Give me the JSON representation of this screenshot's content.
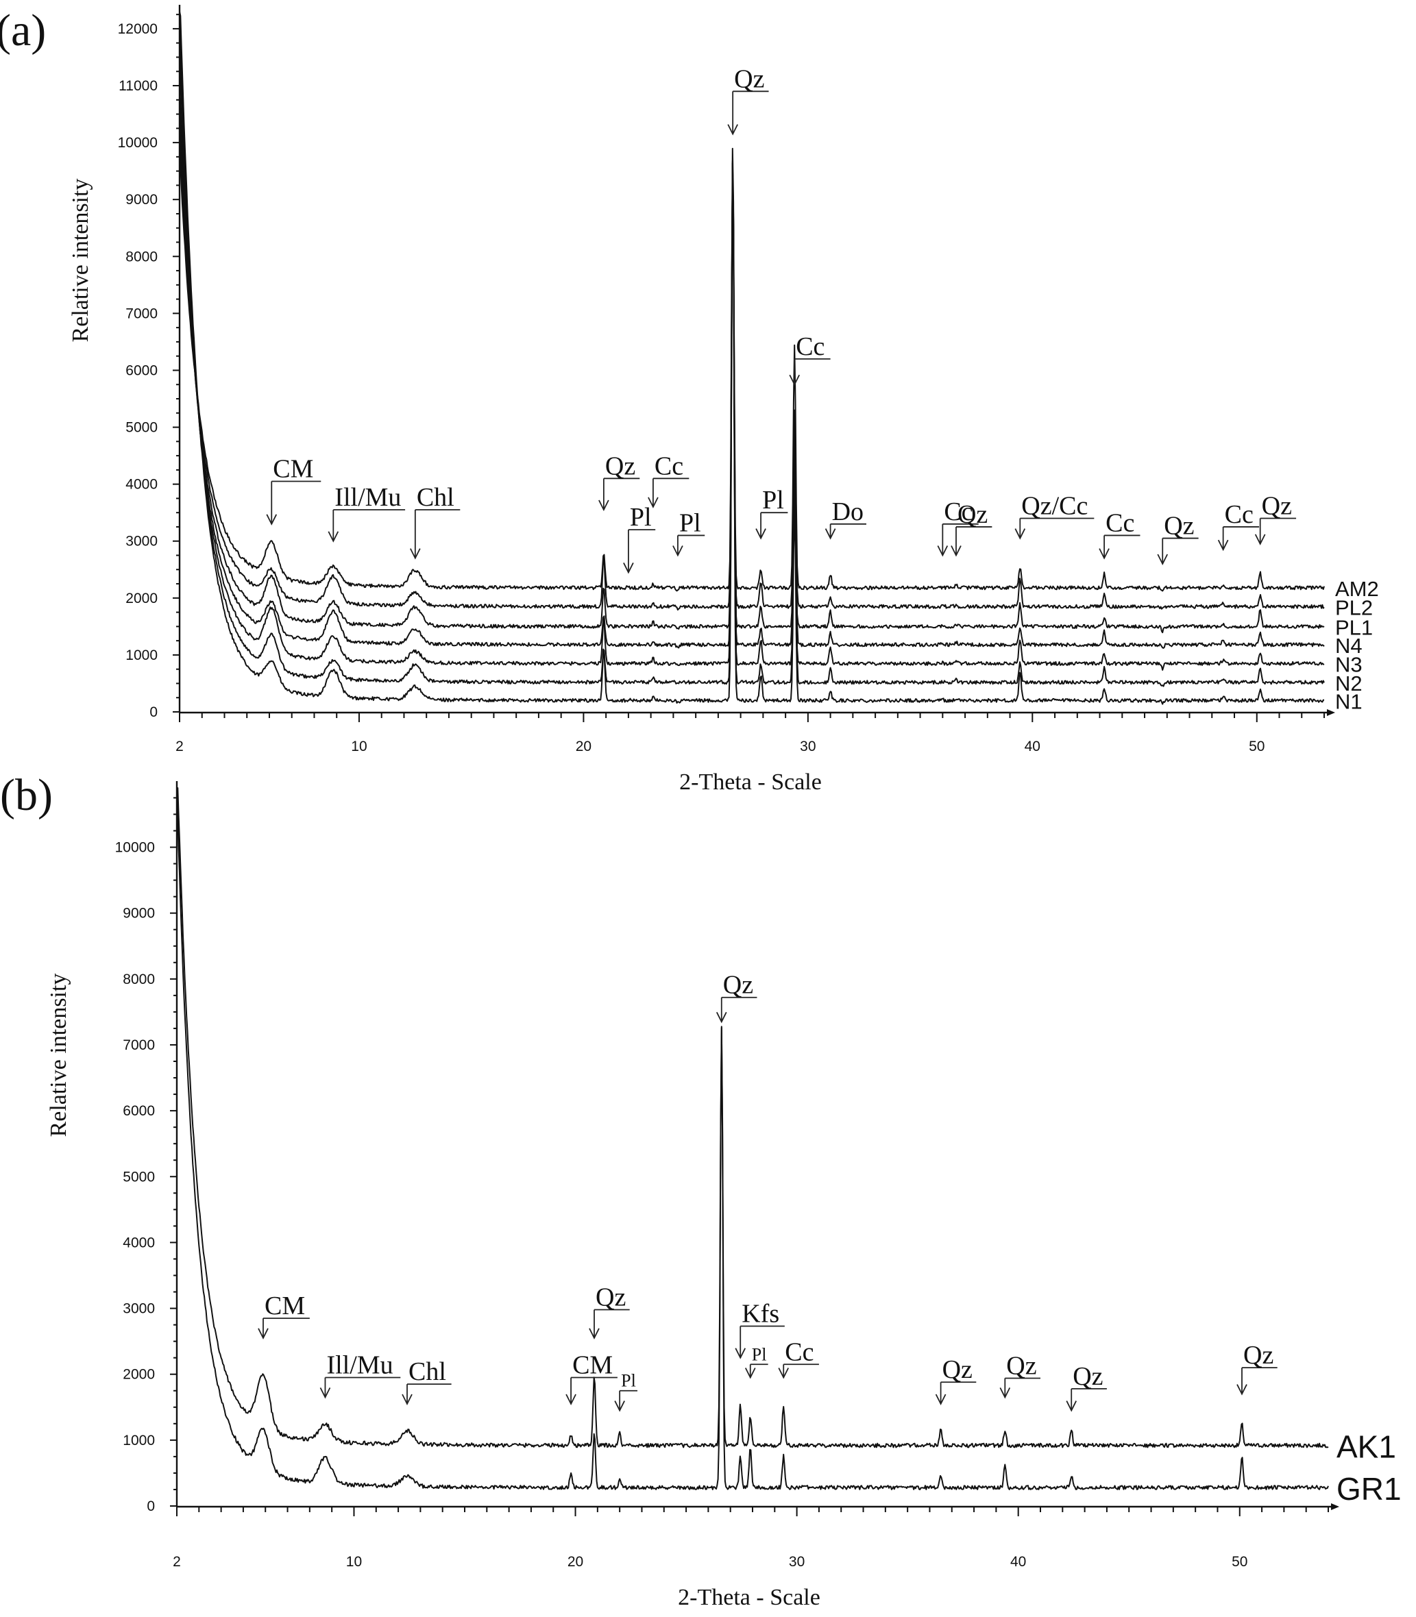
{
  "colors": {
    "line": "#111111",
    "background": "#ffffff"
  },
  "chart_data": [
    {
      "panel": "(a)",
      "type": "line",
      "xlabel": "2-Theta - Scale",
      "ylabel": "Relative intensity",
      "xlim": [
        2,
        53
      ],
      "ylim": [
        0,
        12300
      ],
      "xticks": [
        2,
        10,
        20,
        30,
        40,
        50
      ],
      "yticks": [
        0,
        1000,
        2000,
        3000,
        4000,
        5000,
        6000,
        7000,
        8000,
        9000,
        10000,
        11000,
        12000
      ],
      "series": [
        {
          "name": "N1",
          "baseline": 200,
          "low_angle_start": 12300
        },
        {
          "name": "N2",
          "baseline": 520,
          "low_angle_start": 11800
        },
        {
          "name": "N3",
          "baseline": 850,
          "low_angle_start": 11200
        },
        {
          "name": "N4",
          "baseline": 1180,
          "low_angle_start": 10600
        },
        {
          "name": "PL1",
          "baseline": 1500,
          "low_angle_start": 10200
        },
        {
          "name": "PL2",
          "baseline": 1850,
          "low_angle_start": 9800
        },
        {
          "name": "AM2",
          "baseline": 2180,
          "low_angle_start": 9400
        }
      ],
      "peaks": [
        {
          "two_theta": 6.1,
          "intensity": 3250
        },
        {
          "two_theta": 8.85,
          "intensity": 2950
        },
        {
          "two_theta": 12.5,
          "intensity": 2650
        },
        {
          "two_theta": 20.9,
          "intensity": 3450
        },
        {
          "two_theta": 22.0,
          "intensity": 2200
        },
        {
          "two_theta": 23.1,
          "intensity": 2300
        },
        {
          "two_theta": 24.2,
          "intensity": 2100
        },
        {
          "two_theta": 26.65,
          "intensity": 10050
        },
        {
          "two_theta": 27.9,
          "intensity": 2850
        },
        {
          "two_theta": 29.4,
          "intensity": 5600
        },
        {
          "two_theta": 31.0,
          "intensity": 2600
        },
        {
          "two_theta": 36.0,
          "intensity": 2200
        },
        {
          "two_theta": 36.6,
          "intensity": 2250
        },
        {
          "two_theta": 39.45,
          "intensity": 2900
        },
        {
          "two_theta": 43.2,
          "intensity": 2550
        },
        {
          "two_theta": 45.8,
          "intensity": 2050
        },
        {
          "two_theta": 48.5,
          "intensity": 2300
        },
        {
          "two_theta": 50.15,
          "intensity": 2600
        }
      ],
      "annotations": [
        {
          "label": "CM",
          "x": 6.1,
          "y": 3300,
          "ly": 4050,
          "lw": 2.2
        },
        {
          "label": "Ill/Mu",
          "x": 8.85,
          "y": 3000,
          "ly": 3550,
          "lw": 3.2
        },
        {
          "label": "Chl",
          "x": 12.5,
          "y": 2700,
          "ly": 3550,
          "lw": 2.0
        },
        {
          "label": "Qz",
          "x": 20.9,
          "y": 3550,
          "ly": 4100,
          "lw": 1.6
        },
        {
          "label": "Pl",
          "x": 22.0,
          "y": 2450,
          "ly": 3200,
          "lw": 1.2
        },
        {
          "label": "Cc",
          "x": 23.1,
          "y": 3600,
          "ly": 4100,
          "lw": 1.6
        },
        {
          "label": "Pl",
          "x": 24.2,
          "y": 2750,
          "ly": 3100,
          "lw": 1.2
        },
        {
          "label": "Qz",
          "x": 26.65,
          "y": 10150,
          "ly": 10900,
          "lw": 1.6
        },
        {
          "label": "Pl",
          "x": 27.9,
          "y": 3050,
          "ly": 3500,
          "lw": 1.2
        },
        {
          "label": "Cc",
          "x": 29.4,
          "y": 5750,
          "ly": 6200,
          "lw": 1.6
        },
        {
          "label": "Do",
          "x": 31.0,
          "y": 3050,
          "ly": 3300,
          "lw": 1.6
        },
        {
          "label": "Cc",
          "x": 36.0,
          "y": 2750,
          "ly": 3300,
          "lw": 1.6
        },
        {
          "label": "Qz",
          "x": 36.6,
          "y": 2750,
          "ly": 3250,
          "lw": 1.6
        },
        {
          "label": "Qz/Cc",
          "x": 39.45,
          "y": 3050,
          "ly": 3400,
          "lw": 3.3
        },
        {
          "label": "Cc",
          "x": 43.2,
          "y": 2700,
          "ly": 3100,
          "lw": 1.6
        },
        {
          "label": "Qz",
          "x": 45.8,
          "y": 2600,
          "ly": 3050,
          "lw": 1.6
        },
        {
          "label": "Cc",
          "x": 48.5,
          "y": 2850,
          "ly": 3250,
          "lw": 1.6
        },
        {
          "label": "Qz",
          "x": 50.15,
          "y": 2950,
          "ly": 3400,
          "lw": 1.6
        }
      ]
    },
    {
      "panel": "(b)",
      "type": "line",
      "xlabel": "2-Theta - Scale",
      "ylabel": "Relative intensity",
      "xlim": [
        2,
        54
      ],
      "ylim": [
        0,
        10900
      ],
      "xticks": [
        2,
        10,
        20,
        30,
        40,
        50
      ],
      "yticks": [
        0,
        1000,
        2000,
        3000,
        4000,
        5000,
        6000,
        7000,
        8000,
        9000,
        10000
      ],
      "series": [
        {
          "name": "GR1",
          "baseline": 280,
          "low_angle_start": 10400
        },
        {
          "name": "AK1",
          "baseline": 920,
          "low_angle_start": 10900
        }
      ],
      "peaks": [
        {
          "two_theta": 5.9,
          "intensity": 2400
        },
        {
          "two_theta": 8.7,
          "intensity": 1550
        },
        {
          "two_theta": 12.4,
          "intensity": 1250
        },
        {
          "two_theta": 19.8,
          "intensity": 1250
        },
        {
          "two_theta": 20.85,
          "intensity": 2450
        },
        {
          "two_theta": 22.0,
          "intensity": 1250
        },
        {
          "two_theta": 26.6,
          "intensity": 7250
        },
        {
          "two_theta": 27.45,
          "intensity": 1900
        },
        {
          "two_theta": 27.9,
          "intensity": 1800
        },
        {
          "two_theta": 29.4,
          "intensity": 1800
        },
        {
          "two_theta": 36.5,
          "intensity": 1400
        },
        {
          "two_theta": 39.4,
          "intensity": 1500
        },
        {
          "two_theta": 42.4,
          "intensity": 1300
        },
        {
          "two_theta": 50.1,
          "intensity": 1600
        }
      ],
      "annotations": [
        {
          "label": "CM",
          "x": 5.9,
          "y": 2550,
          "ly": 2850,
          "lw": 2.1
        },
        {
          "label": "Ill/Mu",
          "x": 8.7,
          "y": 1650,
          "ly": 1950,
          "lw": 3.4
        },
        {
          "label": "Chl",
          "x": 12.4,
          "y": 1550,
          "ly": 1850,
          "lw": 2.0
        },
        {
          "label": "CM",
          "x": 19.8,
          "y": 1550,
          "ly": 1950,
          "lw": 2.1
        },
        {
          "label": "Qz",
          "x": 20.85,
          "y": 2550,
          "ly": 2980,
          "lw": 1.6
        },
        {
          "label": "Pl",
          "x": 22.0,
          "y": 1450,
          "ly": 1750,
          "lw": 0.8,
          "small": true
        },
        {
          "label": "Qz",
          "x": 26.6,
          "y": 7350,
          "ly": 7720,
          "lw": 1.6
        },
        {
          "label": "Kfs",
          "x": 27.45,
          "y": 2250,
          "ly": 2730,
          "lw": 2.0
        },
        {
          "label": "Pl",
          "x": 27.9,
          "y": 1950,
          "ly": 2150,
          "lw": 0.8,
          "small": true
        },
        {
          "label": "Cc",
          "x": 29.4,
          "y": 1950,
          "ly": 2150,
          "lw": 1.6
        },
        {
          "label": "Qz",
          "x": 36.5,
          "y": 1550,
          "ly": 1880,
          "lw": 1.6
        },
        {
          "label": "Qz",
          "x": 39.4,
          "y": 1650,
          "ly": 1940,
          "lw": 1.6
        },
        {
          "label": "Qz",
          "x": 42.4,
          "y": 1450,
          "ly": 1780,
          "lw": 1.6
        },
        {
          "label": "Qz",
          "x": 50.1,
          "y": 1700,
          "ly": 2100,
          "lw": 1.6
        }
      ]
    }
  ]
}
